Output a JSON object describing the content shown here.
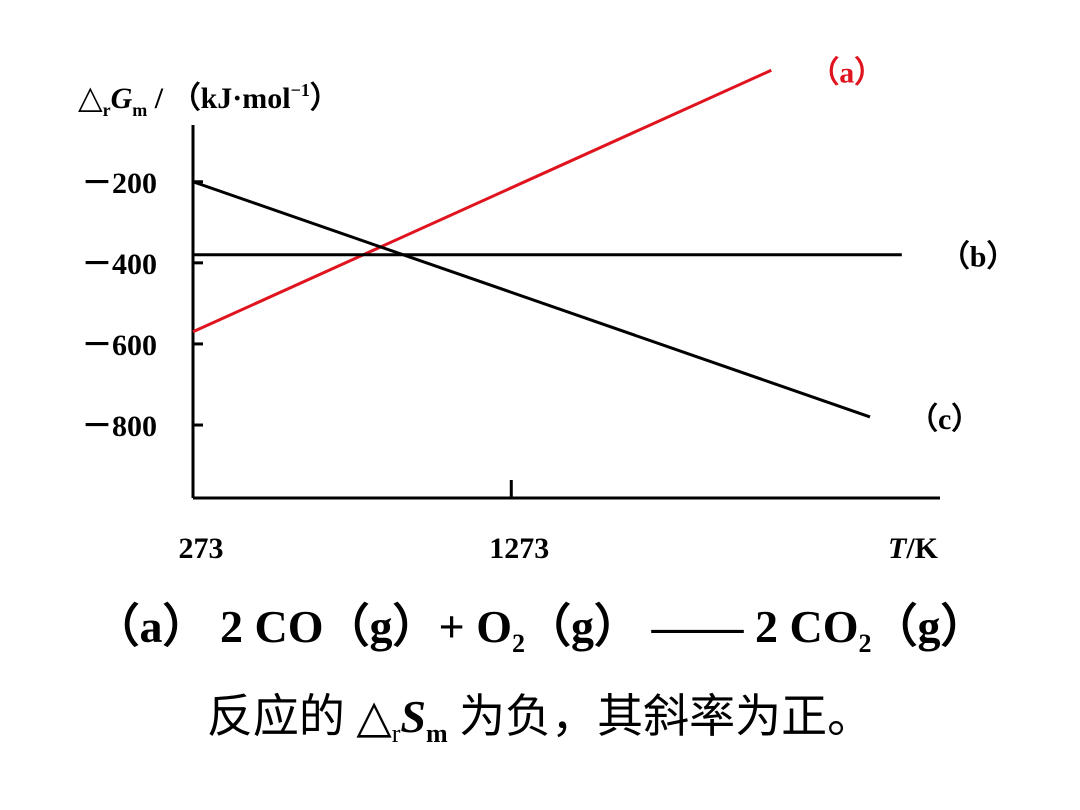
{
  "chart_data": {
    "type": "line",
    "ylabel": {
      "delta": "△",
      "sub_r": "r",
      "main": "G",
      "sub_m": "m",
      "rest": " / （kJ·mol",
      "sup": "−1",
      "close": "）"
    },
    "xlabel": {
      "main": "T",
      "rest": "/K"
    },
    "x_ticks": [
      {
        "value": 273,
        "label": "273"
      },
      {
        "value": 1273,
        "label": "1273"
      }
    ],
    "y_ticks": [
      {
        "value": -200,
        "label": "－200"
      },
      {
        "value": -400,
        "label": "－400"
      },
      {
        "value": -600,
        "label": "－600"
      },
      {
        "value": -800,
        "label": "－800"
      }
    ],
    "xlim": [
      273,
      2620
    ],
    "ylim": [
      -980,
      -60
    ],
    "series": [
      {
        "name": "（a）",
        "color": "#e0141e",
        "x": [
          273,
          2090
        ],
        "y": [
          -570,
          75
        ]
      },
      {
        "name": "（b）",
        "color": "#000000",
        "x": [
          273,
          2500
        ],
        "y": [
          -380,
          -380
        ]
      },
      {
        "name": "（c）",
        "color": "#000000",
        "x": [
          273,
          2400
        ],
        "y": [
          -200,
          -780
        ]
      }
    ]
  },
  "equation": {
    "label": "（a）",
    "lhs1": "2  CO（g）+ O",
    "o2_sub": "2",
    "lhs2": "（g）",
    "arrow": "——",
    "rhs1": "2 CO",
    "co2_sub": "2",
    "rhs2": "（g）"
  },
  "note": {
    "pre": "反应的 △",
    "sub_r": "r",
    "sym": "S",
    "sub_m": "m",
    "post": " 为负，其斜率为正。"
  }
}
